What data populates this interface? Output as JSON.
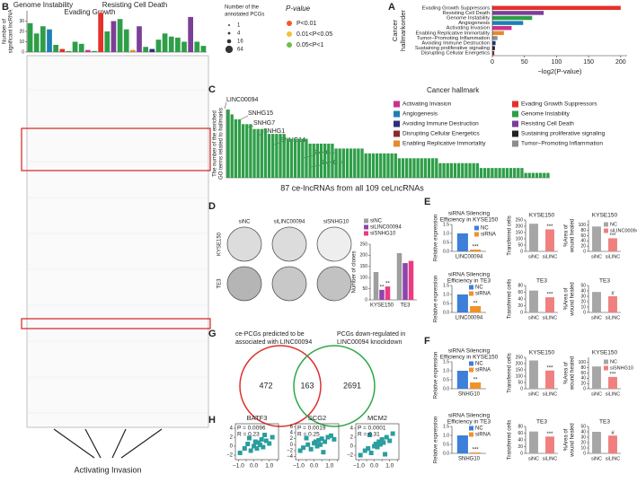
{
  "panel_labels": [
    "A",
    "B",
    "C",
    "D",
    "E",
    "F",
    "G",
    "H"
  ],
  "legend_b": {
    "size_title": [
      "Number of the",
      "annotated PCGs"
    ],
    "sizes": [
      1,
      4,
      16,
      64
    ],
    "p_title": "P-value",
    "p_items": [
      "P<0.01",
      "0.01<P<0.05",
      "0.05<P<1"
    ],
    "p_colors": [
      "#f05a28",
      "#f2c03c",
      "#6cbf4a"
    ]
  },
  "annotations_b": [
    "Genome Instability",
    "Evading Growth",
    "Resisting Cell Death",
    "Activating Invasion"
  ],
  "hallmark_legend": {
    "title": "Cancer hallmark",
    "items": [
      "Activating Invasion",
      "Evading Growth Suppressors",
      "Angiogenesis",
      "Genome Instability",
      "Avoiding Immune Destruction",
      "Resisting Cell Death",
      "Disrupting Cellular Energetics",
      "Sustaining proliferative signaling",
      "Enabling Replicative Immortality",
      "Tumor−Promoting Inflammation"
    ],
    "colors": [
      "#c8338f",
      "#e5312a",
      "#1f7fb4",
      "#2e9e48",
      "#2c2f7a",
      "#7b3f98",
      "#8a2b2b",
      "#222222",
      "#e68a2e",
      "#8c8c8c"
    ]
  },
  "highlighted_lncrnas": [
    "LINC00094",
    "SNHG15",
    "SNHG7",
    "SNHG1",
    "SNHG14",
    "SNHG6",
    "SNHG10"
  ],
  "plates": {
    "columns": [
      "siNC",
      "siLINC00094",
      "siSNHG10"
    ],
    "rows": [
      "KYSE150",
      "TE3"
    ]
  },
  "venn": {
    "left_label": [
      "ce-PCGs predicted to be",
      "associated with LINC00094"
    ],
    "right_label": [
      "PCGs down-regulated in",
      "LINC00094 knockdown"
    ],
    "left_only": 472,
    "both": 163,
    "right_only": 2691
  },
  "chart_data": [
    {
      "type": "bar",
      "horizontal": true,
      "ylabel": [
        "Cancer",
        "hallmarkorder"
      ],
      "xlabel": "−log2(P-value)",
      "categories": [
        "Evading Growth Suppressors",
        "Resisting Cell Death",
        "Genome Instability",
        "Angiogenesis",
        "Activating Invasion",
        "Enabling Replicative Immortality",
        "Tumor−Promoting Inflammation",
        "Avoiding Immune Destruction",
        "Sustaining proliferative signaling",
        "Disrupting Cellular Energetics"
      ],
      "values": [
        200,
        80,
        62,
        48,
        30,
        18,
        8,
        5,
        4,
        3
      ],
      "colors": [
        "#e5312a",
        "#7b3f98",
        "#2e9e48",
        "#1f7fb4",
        "#c8338f",
        "#e68a2e",
        "#8c8c8c",
        "#2c2f7a",
        "#222222",
        "#8a2b2b"
      ],
      "xlim": [
        0,
        210
      ],
      "xticks": [
        0,
        50,
        100,
        150,
        200
      ]
    },
    {
      "type": "bar",
      "ylabel": [
        "Number of",
        "significant lncRNA"
      ],
      "values": [
        28,
        18,
        25,
        22,
        7,
        3,
        1,
        10,
        8,
        2,
        1,
        38,
        20,
        30,
        32,
        22,
        2,
        25,
        5,
        3,
        12,
        18,
        15,
        14,
        10,
        34,
        10,
        6
      ],
      "colors": [
        "#2e9e48",
        "#2e9e48",
        "#2e9e48",
        "#1f7fb4",
        "#2e9e48",
        "#e5312a",
        "#2e9e48",
        "#2e9e48",
        "#2e9e48",
        "#c8338f",
        "#2e9e48",
        "#e5312a",
        "#2e9e48",
        "#7b3f98",
        "#2e9e48",
        "#2e9e48",
        "#e68a2e",
        "#7b3f98",
        "#2e9e48",
        "#2c2f7a",
        "#2e9e48",
        "#2e9e48",
        "#2e9e48",
        "#2e9e48",
        "#2e9e48",
        "#7b3f98",
        "#2e9e48",
        "#2e9e48"
      ],
      "ylim": [
        0,
        40
      ],
      "yticks": [
        0,
        10,
        20,
        30
      ]
    },
    {
      "type": "bar",
      "ylabel": [
        "The number of the enriched",
        "GO terms related to hallmarks"
      ],
      "xlabel": "87 ce-lncRNAs from all 109 ceLncRNAs",
      "values": [
        14,
        13,
        12,
        12,
        11,
        11,
        11,
        10,
        10,
        10,
        10,
        9,
        9,
        9,
        9,
        9,
        8,
        8,
        8,
        8,
        8,
        8,
        7,
        7,
        7,
        7,
        7,
        7,
        7,
        6,
        6,
        6,
        6,
        6,
        6,
        6,
        6,
        5,
        5,
        5,
        5,
        5,
        5,
        5,
        5,
        5,
        4,
        4,
        4,
        4,
        4,
        4,
        4,
        4,
        4,
        4,
        4,
        3,
        3,
        3,
        3,
        3,
        3,
        3,
        3,
        3,
        3,
        3,
        2,
        2,
        2,
        2,
        2,
        2,
        2,
        2,
        2,
        2,
        2,
        2,
        1,
        1,
        1,
        1,
        1,
        1,
        1
      ],
      "color": "#2e9e48",
      "ylim": [
        0,
        14
      ]
    },
    {
      "type": "bar",
      "ylabel": "Number of clones",
      "categories": [
        "KYSE150",
        "TE3"
      ],
      "series": [
        {
          "name": "siNC",
          "color": "#9e9e9e",
          "values": [
            125,
            210
          ]
        },
        {
          "name": "siLINC00094",
          "color": "#8e44ad",
          "values": [
            45,
            165
          ]
        },
        {
          "name": "siSNHG10",
          "color": "#ec3b83",
          "values": [
            60,
            175
          ]
        }
      ],
      "significance": [
        "**",
        "**"
      ],
      "ylim": [
        0,
        250
      ],
      "yticks": [
        0,
        50,
        100,
        150,
        200,
        250
      ]
    },
    {
      "type": "bar",
      "title": [
        "siRNA Silencing",
        "Efficiency in KYSE150"
      ],
      "ylabel": "Relative expression",
      "categories": [
        "LINC00094"
      ],
      "series": [
        {
          "name": "NC",
          "color": "#3d7fd9",
          "values": [
            1.0
          ]
        },
        {
          "name": "siRNA",
          "color": "#f0922b",
          "values": [
            0.1
          ]
        }
      ],
      "significance": [
        "***"
      ],
      "ylim": [
        0,
        1.5
      ],
      "yticks": [
        {
          "value": 0,
          "label": "0.0"
        },
        {
          "value": 0.5,
          "label": "0.5"
        },
        {
          "value": 1,
          "label": "1.0"
        },
        {
          "value": 1.5,
          "label": "1.5"
        }
      ]
    },
    {
      "type": "bar",
      "title": "KYSE150",
      "ylabel": "Transferred cells",
      "categories": [
        "siNC",
        "siLINC"
      ],
      "values": [
        220,
        175
      ],
      "colors": [
        "#a6a6a6",
        "#f07f7f"
      ],
      "significance": [
        "***"
      ],
      "ylim": [
        0,
        250
      ],
      "yticks": [
        0,
        50,
        100,
        150,
        200,
        250
      ]
    },
    {
      "type": "bar",
      "title": "KYSE150",
      "ylabel": [
        "%Area of",
        "wound healed"
      ],
      "categories": [
        "siNC",
        "siLINC"
      ],
      "values": [
        95,
        50
      ],
      "colors": [
        "#a6a6a6",
        "#f07f7f"
      ],
      "legend": [
        "NC",
        "siLINC00094"
      ],
      "significance": [
        "***"
      ],
      "ylim": [
        0,
        120
      ],
      "yticks": [
        0,
        20,
        40,
        60,
        80,
        100
      ]
    },
    {
      "type": "bar",
      "title": [
        "siRNA Silencing",
        "Efficiency in TE3"
      ],
      "ylabel": "Relative expression",
      "categories": [
        "LINC00094"
      ],
      "series": [
        {
          "name": "NC",
          "color": "#3d7fd9",
          "values": [
            1.0
          ]
        },
        {
          "name": "siRNA",
          "color": "#f0922b",
          "values": [
            0.35
          ]
        }
      ],
      "significance": [
        "**"
      ],
      "ylim": [
        0,
        1.5
      ],
      "yticks": [
        {
          "value": 0,
          "label": "0.0"
        },
        {
          "value": 0.5,
          "label": "0.5"
        },
        {
          "value": 1,
          "label": "1.0"
        },
        {
          "value": 1.5,
          "label": "1.5"
        }
      ]
    },
    {
      "type": "bar",
      "title": "TE3",
      "ylabel": "Transferred cells",
      "categories": [
        "siNC",
        "siLINC"
      ],
      "values": [
        65,
        45
      ],
      "colors": [
        "#a6a6a6",
        "#f07f7f"
      ],
      "significance": [
        "***"
      ],
      "ylim": [
        0,
        80
      ],
      "yticks": [
        0,
        20,
        40,
        60,
        80
      ]
    },
    {
      "type": "bar",
      "title": "TE3",
      "ylabel": [
        "%Area of",
        "wound healed"
      ],
      "categories": [
        "siNC",
        "siLINC"
      ],
      "values": [
        38,
        30
      ],
      "colors": [
        "#a6a6a6",
        "#f07f7f"
      ],
      "significance": [
        "#"
      ],
      "ylim": [
        0,
        50
      ],
      "yticks": [
        0,
        10,
        20,
        30,
        40,
        50
      ]
    },
    {
      "type": "bar",
      "title": [
        "siRNA Silencing",
        "Efficiency in KYSE150"
      ],
      "ylabel": "Relative expression",
      "categories": [
        "SNHG10"
      ],
      "series": [
        {
          "name": "NC",
          "color": "#3d7fd9",
          "values": [
            1.0
          ]
        },
        {
          "name": "siRNA",
          "color": "#f0922b",
          "values": [
            0.35
          ]
        }
      ],
      "significance": [
        "**"
      ],
      "ylim": [
        0,
        1.5
      ],
      "yticks": [
        {
          "value": 0,
          "label": "0.0"
        },
        {
          "value": 0.5,
          "label": "0.5"
        },
        {
          "value": 1,
          "label": "1.0"
        },
        {
          "value": 1.5,
          "label": "1.5"
        }
      ]
    },
    {
      "type": "bar",
      "title": "KYSE150",
      "ylabel": "Transferred cells",
      "categories": [
        "siNC",
        "siLINC"
      ],
      "values": [
        225,
        145
      ],
      "colors": [
        "#a6a6a6",
        "#f07f7f"
      ],
      "significance": [
        "***"
      ],
      "ylim": [
        0,
        250
      ],
      "yticks": [
        0,
        50,
        100,
        150,
        200,
        250
      ]
    },
    {
      "type": "bar",
      "title": "KYSE150",
      "ylabel": [
        "%Area of",
        "wound healed"
      ],
      "categories": [
        "siNC",
        "siLINC"
      ],
      "values": [
        85,
        45
      ],
      "colors": [
        "#a6a6a6",
        "#f07f7f"
      ],
      "legend": [
        "NC",
        "siSNHG10"
      ],
      "significance": [
        "***"
      ],
      "ylim": [
        0,
        120
      ],
      "yticks": [
        0,
        20,
        40,
        60,
        80,
        100
      ]
    },
    {
      "type": "bar",
      "title": [
        "siRNA Silencing",
        "Efficiency in TE3"
      ],
      "ylabel": "Relative expression",
      "categories": [
        "SNHG10"
      ],
      "series": [
        {
          "name": "NC",
          "color": "#3d7fd9",
          "values": [
            1.0
          ]
        },
        {
          "name": "siRNA",
          "color": "#f0922b",
          "values": [
            0.05
          ]
        }
      ],
      "significance": [
        "***"
      ],
      "ylim": [
        0,
        1.5
      ],
      "yticks": [
        {
          "value": 0,
          "label": "0.0"
        },
        {
          "value": 0.5,
          "label": "0.5"
        },
        {
          "value": 1,
          "label": "1.0"
        },
        {
          "value": 1.5,
          "label": "1.5"
        }
      ]
    },
    {
      "type": "bar",
      "title": "TE3",
      "ylabel": "Transferred cells",
      "categories": [
        "siNC",
        "siLINC"
      ],
      "values": [
        65,
        50
      ],
      "colors": [
        "#a6a6a6",
        "#f07f7f"
      ],
      "significance": [
        "***"
      ],
      "ylim": [
        0,
        80
      ],
      "yticks": [
        0,
        20,
        40,
        60,
        80
      ]
    },
    {
      "type": "bar",
      "title": "TE3",
      "ylabel": [
        "%Area of",
        "wound healed"
      ],
      "categories": [
        "siNC",
        "siLINC"
      ],
      "values": [
        40,
        33
      ],
      "colors": [
        "#a6a6a6",
        "#f07f7f"
      ],
      "significance": [
        "#"
      ],
      "ylim": [
        0,
        50
      ],
      "yticks": [
        0,
        10,
        20,
        30,
        40,
        50
      ]
    },
    {
      "type": "scatter",
      "title": "BATF3",
      "stats": [
        "P = 0.0096",
        "R = 0.23"
      ],
      "color": "#2a9d9f",
      "x": [
        -0.9,
        -0.6,
        -0.4,
        -0.2,
        0.0,
        0.1,
        0.2,
        0.3,
        0.4,
        0.5,
        0.6,
        0.8,
        1.0,
        1.2,
        -0.3,
        0.7
      ],
      "y": [
        -1.5,
        -0.5,
        0.5,
        -1.0,
        0.0,
        1.0,
        -0.5,
        0.8,
        0.3,
        1.5,
        -0.2,
        1.2,
        0.6,
        2.0,
        1.8,
        2.5
      ],
      "xlim": [
        -1.2,
        1.6
      ],
      "ylim": [
        -3,
        5
      ],
      "xticks": [
        {
          "value": -1,
          "label": "−1.0"
        },
        {
          "value": -0.5,
          "label": "−0.5"
        },
        {
          "value": 0,
          "label": "0.0"
        },
        {
          "value": 0.5,
          "label": "0.5"
        },
        {
          "value": 1,
          "label": "1.0"
        },
        {
          "value": 1.5,
          "label": "1.5"
        }
      ],
      "yticks": [
        {
          "value": -2,
          "label": "−2"
        },
        0,
        2,
        4
      ]
    },
    {
      "type": "scatter",
      "title": "SCG2",
      "stats": [
        "P = 0.0019",
        "R = 0.25"
      ],
      "color": "#2a9d9f",
      "x": [
        -0.9,
        -0.7,
        -0.4,
        -0.2,
        0.0,
        0.1,
        0.2,
        0.3,
        0.4,
        0.5,
        0.7,
        0.9,
        1.1,
        1.3,
        -0.5,
        0.6
      ],
      "y": [
        -2.0,
        -1.0,
        0.0,
        -1.5,
        0.5,
        1.0,
        -0.5,
        1.5,
        0.0,
        2.0,
        1.0,
        2.5,
        3.0,
        1.8,
        2.2,
        -2.5
      ],
      "xlim": [
        -1.2,
        1.6
      ],
      "ylim": [
        -5,
        7
      ],
      "xticks": [
        {
          "value": -1,
          "label": "−1.0"
        },
        {
          "value": -0.5,
          "label": "−0.5"
        },
        {
          "value": 0,
          "label": "0.0"
        },
        {
          "value": 0.5,
          "label": "0.5"
        },
        {
          "value": 1,
          "label": "1.0"
        },
        {
          "value": 1.5,
          "label": "1.5"
        }
      ],
      "yticks": [
        {
          "value": -4,
          "label": "−4"
        },
        {
          "value": -2,
          "label": "−2"
        },
        0,
        2,
        4,
        6
      ]
    },
    {
      "type": "scatter",
      "title": "MCM2",
      "stats": [
        "P = 0.0001",
        "R = 0.31"
      ],
      "color": "#2a9d9f",
      "x": [
        -0.9,
        -0.6,
        -0.4,
        -0.2,
        0.0,
        0.1,
        0.2,
        0.3,
        0.4,
        0.5,
        0.6,
        0.8,
        1.0,
        1.2,
        -0.3,
        0.7
      ],
      "y": [
        -2.0,
        -1.0,
        -0.5,
        -1.5,
        0.0,
        0.5,
        -0.2,
        1.0,
        0.4,
        1.5,
        0.8,
        2.0,
        1.2,
        2.8,
        2.5,
        -1.8
      ],
      "xlim": [
        -1.2,
        1.6
      ],
      "ylim": [
        -3,
        5
      ],
      "xticks": [
        {
          "value": -1,
          "label": "−1.0"
        },
        {
          "value": -0.5,
          "label": "−0.5"
        },
        {
          "value": 0,
          "label": "0.0"
        },
        {
          "value": 0.5,
          "label": "0.5"
        },
        {
          "value": 1,
          "label": "1.0"
        },
        {
          "value": 1.5,
          "label": "1.5"
        }
      ],
      "yticks": [
        {
          "value": -2,
          "label": "−2"
        },
        0,
        2,
        4
      ]
    }
  ]
}
